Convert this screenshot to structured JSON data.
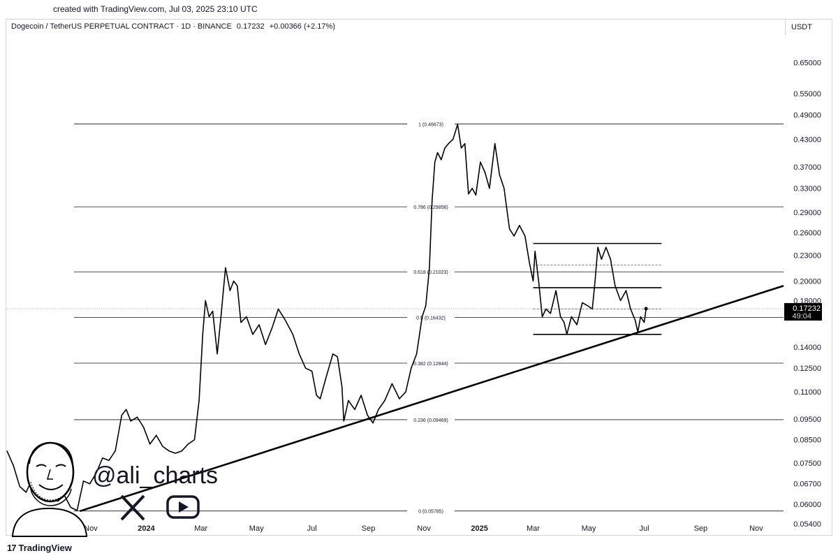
{
  "credit": "created with TradingView.com, Jul 03, 2025 23:10 UTC",
  "header": {
    "symbol": "Dogecoin / TetherUS PERPETUAL CONTRACT · 1D · BINANCE",
    "price": "0.17232",
    "change": "+0.00366 (+2.17%)"
  },
  "currency": "USDT",
  "footer": {
    "brand": "TradingView",
    "logo": "17"
  },
  "watermark": {
    "handle": "@ali_charts",
    "x_icon": "x-logo-icon",
    "play_icon": "play-icon"
  },
  "price_tag": {
    "price": "0.17232",
    "countdown": "49:04"
  },
  "chart_data": {
    "type": "line",
    "scale": "log",
    "ylim": [
      0.052,
      0.7
    ],
    "xlim": [
      "2023-08-01",
      "2025-12-01"
    ],
    "y_ticks": [
      {
        "value": 0.65,
        "label": "0.65000"
      },
      {
        "value": 0.55,
        "label": "0.55000"
      },
      {
        "value": 0.49,
        "label": "0.49000"
      },
      {
        "value": 0.43,
        "label": "0.43000"
      },
      {
        "value": 0.37,
        "label": "0.37000"
      },
      {
        "value": 0.33,
        "label": "0.33000"
      },
      {
        "value": 0.29,
        "label": "0.29000"
      },
      {
        "value": 0.26,
        "label": "0.26000"
      },
      {
        "value": 0.23,
        "label": "0.23000"
      },
      {
        "value": 0.2,
        "label": "0.20000"
      },
      {
        "value": 0.18,
        "label": "0.18000"
      },
      {
        "value": 0.14,
        "label": "0.14000"
      },
      {
        "value": 0.125,
        "label": "0.12500"
      },
      {
        "value": 0.11,
        "label": "0.11000"
      },
      {
        "value": 0.095,
        "label": "0.09500"
      },
      {
        "value": 0.085,
        "label": "0.08500"
      },
      {
        "value": 0.075,
        "label": "0.07500"
      },
      {
        "value": 0.067,
        "label": "0.06700"
      },
      {
        "value": 0.06,
        "label": "0.06000"
      },
      {
        "value": 0.054,
        "label": "0.05400"
      }
    ],
    "x_ticks": [
      {
        "date": "2023-09-01",
        "label": "Sep",
        "bold": false
      },
      {
        "date": "2023-11-01",
        "label": "Nov",
        "bold": false
      },
      {
        "date": "2024-01-01",
        "label": "2024",
        "bold": true
      },
      {
        "date": "2024-03-01",
        "label": "Mar",
        "bold": false
      },
      {
        "date": "2024-05-01",
        "label": "May",
        "bold": false
      },
      {
        "date": "2024-07-01",
        "label": "Jul",
        "bold": false
      },
      {
        "date": "2024-09-01",
        "label": "Sep",
        "bold": false
      },
      {
        "date": "2024-11-01",
        "label": "Nov",
        "bold": false
      },
      {
        "date": "2025-01-01",
        "label": "2025",
        "bold": true
      },
      {
        "date": "2025-03-01",
        "label": "Mar",
        "bold": false
      },
      {
        "date": "2025-05-01",
        "label": "May",
        "bold": false
      },
      {
        "date": "2025-07-01",
        "label": "Jul",
        "bold": false
      },
      {
        "date": "2025-09-01",
        "label": "Sep",
        "bold": false
      },
      {
        "date": "2025-11-01",
        "label": "Nov",
        "bold": false
      }
    ],
    "fib_levels": [
      {
        "value": 0.46673,
        "label": "1 (0.46673)"
      },
      {
        "value": 0.29856,
        "label": "0.786 (0.29856)"
      },
      {
        "value": 0.21023,
        "label": "0.618 (0.21023)"
      },
      {
        "value": 0.16432,
        "label": "0.5 (0.16432)"
      },
      {
        "value": 0.12844,
        "label": "0.382 (0.12844)"
      },
      {
        "value": 0.09469,
        "label": "0.236 (0.09469)"
      },
      {
        "value": 0.05785,
        "label": "0 (0.05785)"
      }
    ],
    "trendline": [
      {
        "date": "2023-10-20",
        "value": 0.0578
      },
      {
        "date": "2025-12-01",
        "value": 0.195
      }
    ],
    "channel": {
      "start": "2025-03-01",
      "end": "2025-07-20",
      "solid": [
        0.245,
        0.193,
        0.15
      ],
      "dashed": [
        0.218,
        0.172
      ]
    },
    "last_price": 0.17232,
    "series": [
      {
        "date": "2023-08-01",
        "value": 0.08
      },
      {
        "date": "2023-08-08",
        "value": 0.074
      },
      {
        "date": "2023-08-15",
        "value": 0.066
      },
      {
        "date": "2023-08-22",
        "value": 0.064
      },
      {
        "date": "2023-08-29",
        "value": 0.069
      },
      {
        "date": "2023-09-05",
        "value": 0.063
      },
      {
        "date": "2023-09-12",
        "value": 0.061
      },
      {
        "date": "2023-09-19",
        "value": 0.062
      },
      {
        "date": "2023-09-26",
        "value": 0.061
      },
      {
        "date": "2023-10-03",
        "value": 0.063
      },
      {
        "date": "2023-10-10",
        "value": 0.059
      },
      {
        "date": "2023-10-17",
        "value": 0.058
      },
      {
        "date": "2023-10-24",
        "value": 0.068
      },
      {
        "date": "2023-10-31",
        "value": 0.067
      },
      {
        "date": "2023-11-07",
        "value": 0.071
      },
      {
        "date": "2023-11-14",
        "value": 0.077
      },
      {
        "date": "2023-11-21",
        "value": 0.076
      },
      {
        "date": "2023-11-28",
        "value": 0.08
      },
      {
        "date": "2023-12-05",
        "value": 0.097
      },
      {
        "date": "2023-12-10",
        "value": 0.1
      },
      {
        "date": "2023-12-15",
        "value": 0.094
      },
      {
        "date": "2023-12-22",
        "value": 0.096
      },
      {
        "date": "2023-12-29",
        "value": 0.091
      },
      {
        "date": "2024-01-05",
        "value": 0.083
      },
      {
        "date": "2024-01-12",
        "value": 0.087
      },
      {
        "date": "2024-01-19",
        "value": 0.082
      },
      {
        "date": "2024-01-26",
        "value": 0.08
      },
      {
        "date": "2024-02-02",
        "value": 0.079
      },
      {
        "date": "2024-02-09",
        "value": 0.08
      },
      {
        "date": "2024-02-16",
        "value": 0.083
      },
      {
        "date": "2024-02-23",
        "value": 0.085
      },
      {
        "date": "2024-02-28",
        "value": 0.105
      },
      {
        "date": "2024-03-03",
        "value": 0.15
      },
      {
        "date": "2024-03-06",
        "value": 0.18
      },
      {
        "date": "2024-03-10",
        "value": 0.165
      },
      {
        "date": "2024-03-14",
        "value": 0.17
      },
      {
        "date": "2024-03-19",
        "value": 0.135
      },
      {
        "date": "2024-03-23",
        "value": 0.165
      },
      {
        "date": "2024-03-28",
        "value": 0.215
      },
      {
        "date": "2024-04-02",
        "value": 0.19
      },
      {
        "date": "2024-04-06",
        "value": 0.2
      },
      {
        "date": "2024-04-10",
        "value": 0.195
      },
      {
        "date": "2024-04-14",
        "value": 0.16
      },
      {
        "date": "2024-04-20",
        "value": 0.165
      },
      {
        "date": "2024-04-27",
        "value": 0.15
      },
      {
        "date": "2024-05-04",
        "value": 0.158
      },
      {
        "date": "2024-05-11",
        "value": 0.142
      },
      {
        "date": "2024-05-18",
        "value": 0.155
      },
      {
        "date": "2024-05-25",
        "value": 0.172
      },
      {
        "date": "2024-06-01",
        "value": 0.163
      },
      {
        "date": "2024-06-10",
        "value": 0.15
      },
      {
        "date": "2024-06-17",
        "value": 0.135
      },
      {
        "date": "2024-06-24",
        "value": 0.125
      },
      {
        "date": "2024-07-01",
        "value": 0.123
      },
      {
        "date": "2024-07-06",
        "value": 0.108
      },
      {
        "date": "2024-07-10",
        "value": 0.106
      },
      {
        "date": "2024-07-17",
        "value": 0.12
      },
      {
        "date": "2024-07-24",
        "value": 0.135
      },
      {
        "date": "2024-07-29",
        "value": 0.133
      },
      {
        "date": "2024-08-03",
        "value": 0.113
      },
      {
        "date": "2024-08-05",
        "value": 0.094
      },
      {
        "date": "2024-08-10",
        "value": 0.105
      },
      {
        "date": "2024-08-17",
        "value": 0.1
      },
      {
        "date": "2024-08-24",
        "value": 0.108
      },
      {
        "date": "2024-08-31",
        "value": 0.097
      },
      {
        "date": "2024-09-06",
        "value": 0.093
      },
      {
        "date": "2024-09-12",
        "value": 0.1
      },
      {
        "date": "2024-09-19",
        "value": 0.105
      },
      {
        "date": "2024-09-27",
        "value": 0.115
      },
      {
        "date": "2024-10-05",
        "value": 0.106
      },
      {
        "date": "2024-10-12",
        "value": 0.11
      },
      {
        "date": "2024-10-18",
        "value": 0.125
      },
      {
        "date": "2024-10-24",
        "value": 0.135
      },
      {
        "date": "2024-10-30",
        "value": 0.165
      },
      {
        "date": "2024-11-03",
        "value": 0.175
      },
      {
        "date": "2024-11-07",
        "value": 0.215
      },
      {
        "date": "2024-11-10",
        "value": 0.31
      },
      {
        "date": "2024-11-13",
        "value": 0.38
      },
      {
        "date": "2024-11-16",
        "value": 0.4
      },
      {
        "date": "2024-11-20",
        "value": 0.385
      },
      {
        "date": "2024-11-24",
        "value": 0.41
      },
      {
        "date": "2024-11-28",
        "value": 0.42
      },
      {
        "date": "2024-12-03",
        "value": 0.43
      },
      {
        "date": "2024-12-08",
        "value": 0.466
      },
      {
        "date": "2024-12-12",
        "value": 0.41
      },
      {
        "date": "2024-12-16",
        "value": 0.42
      },
      {
        "date": "2024-12-20",
        "value": 0.32
      },
      {
        "date": "2024-12-24",
        "value": 0.33
      },
      {
        "date": "2024-12-28",
        "value": 0.318
      },
      {
        "date": "2025-01-02",
        "value": 0.38
      },
      {
        "date": "2025-01-07",
        "value": 0.36
      },
      {
        "date": "2025-01-12",
        "value": 0.33
      },
      {
        "date": "2025-01-18",
        "value": 0.42
      },
      {
        "date": "2025-01-23",
        "value": 0.355
      },
      {
        "date": "2025-01-28",
        "value": 0.33
      },
      {
        "date": "2025-02-03",
        "value": 0.265
      },
      {
        "date": "2025-02-08",
        "value": 0.255
      },
      {
        "date": "2025-02-14",
        "value": 0.27
      },
      {
        "date": "2025-02-20",
        "value": 0.255
      },
      {
        "date": "2025-02-25",
        "value": 0.22
      },
      {
        "date": "2025-03-01",
        "value": 0.2
      },
      {
        "date": "2025-03-03",
        "value": 0.235
      },
      {
        "date": "2025-03-07",
        "value": 0.2
      },
      {
        "date": "2025-03-11",
        "value": 0.165
      },
      {
        "date": "2025-03-15",
        "value": 0.172
      },
      {
        "date": "2025-03-20",
        "value": 0.168
      },
      {
        "date": "2025-03-26",
        "value": 0.19
      },
      {
        "date": "2025-03-31",
        "value": 0.165
      },
      {
        "date": "2025-04-04",
        "value": 0.16
      },
      {
        "date": "2025-04-07",
        "value": 0.15
      },
      {
        "date": "2025-04-12",
        "value": 0.165
      },
      {
        "date": "2025-04-18",
        "value": 0.158
      },
      {
        "date": "2025-04-24",
        "value": 0.178
      },
      {
        "date": "2025-04-30",
        "value": 0.175
      },
      {
        "date": "2025-05-05",
        "value": 0.172
      },
      {
        "date": "2025-05-08",
        "value": 0.2
      },
      {
        "date": "2025-05-11",
        "value": 0.24
      },
      {
        "date": "2025-05-15",
        "value": 0.225
      },
      {
        "date": "2025-05-20",
        "value": 0.24
      },
      {
        "date": "2025-05-25",
        "value": 0.225
      },
      {
        "date": "2025-05-30",
        "value": 0.195
      },
      {
        "date": "2025-06-05",
        "value": 0.18
      },
      {
        "date": "2025-06-11",
        "value": 0.19
      },
      {
        "date": "2025-06-16",
        "value": 0.172
      },
      {
        "date": "2025-06-21",
        "value": 0.162
      },
      {
        "date": "2025-06-24",
        "value": 0.152
      },
      {
        "date": "2025-06-27",
        "value": 0.165
      },
      {
        "date": "2025-07-01",
        "value": 0.16
      },
      {
        "date": "2025-07-03",
        "value": 0.17232
      }
    ]
  }
}
